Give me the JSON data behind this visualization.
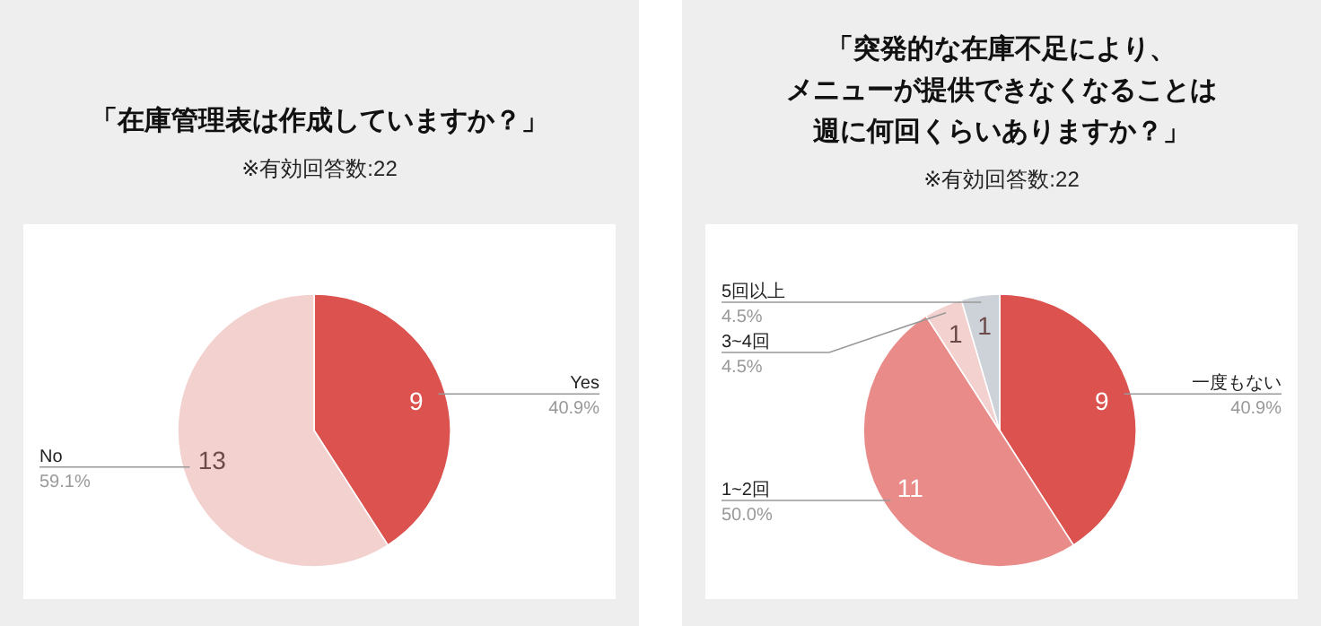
{
  "chart_data": [
    {
      "type": "pie",
      "title": "「在庫管理表は作成していますか？」",
      "subtitle": "※有効回答数:22",
      "categories": [
        "Yes",
        "No"
      ],
      "values": [
        9,
        13
      ],
      "colors": [
        "#db524e",
        "#f2d1cf"
      ],
      "value_labels": [
        "9",
        "13"
      ],
      "annotations": [
        "40.9%",
        "59.1%"
      ]
    },
    {
      "type": "pie",
      "title": "「突発的な在庫不足により、メニューが提供できなくなることは週に何回くらいありますか？」",
      "subtitle": "※有効回答数:22",
      "categories": [
        "一度もない",
        "1~2回",
        "3~4回",
        "5回以上"
      ],
      "values": [
        9,
        11,
        1,
        1
      ],
      "colors": [
        "#db524e",
        "#e98c89",
        "#f2d1cf",
        "#cdd1d8"
      ],
      "value_labels": [
        "9",
        "11",
        "1",
        "1"
      ],
      "annotations": [
        "40.9%",
        "50.0%",
        "4.5%",
        "4.5%"
      ]
    }
  ]
}
